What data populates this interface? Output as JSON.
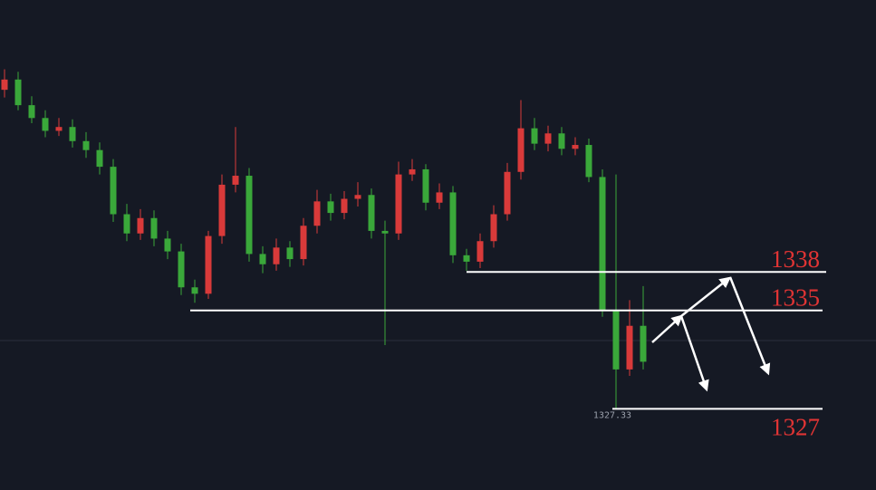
{
  "chart_data": {
    "type": "candlestick",
    "ylim": [
      1321,
      1359.2
    ],
    "up_color": "#d93a3a",
    "down_color": "#3aa83a",
    "open": [
      1352.2,
      1353.0,
      1351.0,
      1350.0,
      1349.0,
      1349.3,
      1348.2,
      1347.5,
      1346.2,
      1342.5,
      1341.0,
      1342.2,
      1340.6,
      1339.6,
      1336.8,
      1336.3,
      1340.8,
      1344.8,
      1345.5,
      1339.4,
      1338.6,
      1339.9,
      1339.0,
      1341.6,
      1343.5,
      1342.6,
      1343.7,
      1344.0,
      1341.2,
      1341.0,
      1345.6,
      1346.0,
      1343.4,
      1344.2,
      1339.3,
      1338.8,
      1340.4,
      1342.5,
      1345.8,
      1349.2,
      1348.0,
      1348.8,
      1347.6,
      1347.9,
      1345.4,
      1335.0,
      1330.4,
      1333.8
    ],
    "high": [
      1353.8,
      1353.6,
      1351.7,
      1350.6,
      1350.0,
      1349.9,
      1348.9,
      1348.1,
      1346.8,
      1343.3,
      1342.9,
      1342.8,
      1341.2,
      1340.2,
      1337.4,
      1341.2,
      1345.6,
      1349.3,
      1346.1,
      1340.0,
      1340.6,
      1340.4,
      1342.2,
      1344.4,
      1344.1,
      1344.3,
      1345.0,
      1344.5,
      1342.0,
      1346.6,
      1346.8,
      1346.4,
      1344.9,
      1344.7,
      1339.8,
      1341.0,
      1343.2,
      1346.5,
      1351.4,
      1350.0,
      1349.4,
      1349.3,
      1348.5,
      1348.4,
      1346.0,
      1345.6,
      1335.8,
      1336.9
    ],
    "low": [
      1351.6,
      1350.6,
      1349.6,
      1348.5,
      1348.6,
      1347.7,
      1346.9,
      1345.6,
      1341.9,
      1340.4,
      1340.5,
      1340.0,
      1339.0,
      1336.2,
      1335.6,
      1335.9,
      1340.2,
      1344.2,
      1338.8,
      1337.9,
      1338.1,
      1338.4,
      1338.5,
      1341.0,
      1342.0,
      1342.1,
      1343.1,
      1340.6,
      1332.3,
      1340.5,
      1345.1,
      1342.8,
      1342.9,
      1338.7,
      1338.1,
      1338.3,
      1339.9,
      1342.0,
      1345.2,
      1347.5,
      1347.4,
      1347.1,
      1347.1,
      1345.0,
      1334.5,
      1327.33,
      1329.9,
      1330.4
    ],
    "close": [
      1353.0,
      1351.0,
      1350.0,
      1349.0,
      1349.3,
      1348.2,
      1347.5,
      1346.2,
      1342.5,
      1341.0,
      1342.2,
      1340.6,
      1339.6,
      1336.8,
      1336.3,
      1340.8,
      1344.8,
      1345.5,
      1339.4,
      1338.6,
      1339.9,
      1339.0,
      1341.6,
      1343.5,
      1342.6,
      1343.7,
      1344.0,
      1341.2,
      1341.0,
      1345.6,
      1346.0,
      1343.4,
      1344.2,
      1339.3,
      1338.8,
      1340.4,
      1342.5,
      1345.8,
      1349.2,
      1348.0,
      1348.8,
      1347.6,
      1347.9,
      1345.4,
      1335.0,
      1330.4,
      1333.8,
      1331.0
    ],
    "levels": [
      {
        "value": 1338,
        "label": "1338"
      },
      {
        "value": 1335,
        "label": "1335"
      },
      {
        "value": 1327.33,
        "label": "1327"
      }
    ],
    "low_marker": {
      "value": 1327.33,
      "label": "1327.33"
    }
  }
}
